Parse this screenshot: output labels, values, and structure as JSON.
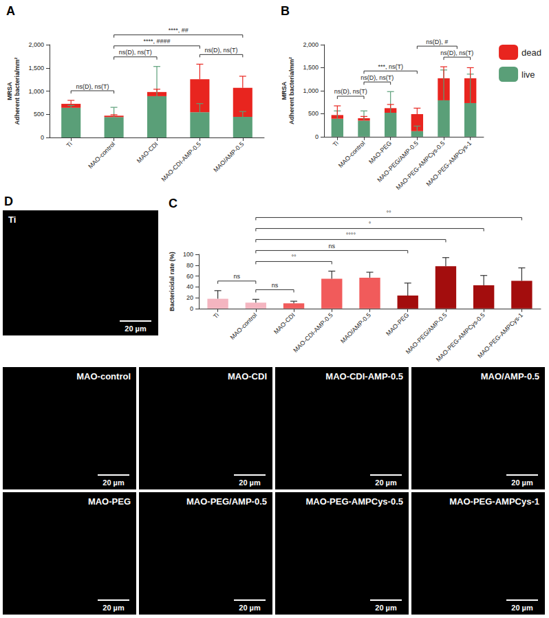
{
  "chart_data": [
    {
      "panel": "A",
      "type": "bar",
      "stacked": true,
      "grid": false,
      "ylabel": "MRSA\nAdherent bacteria/mm²",
      "categories": [
        "Ti",
        "MAO-control",
        "MAO-CDI",
        "MAO-CDI-AMP-0.5",
        "MAO/AMP-0.5"
      ],
      "series": [
        {
          "name": "live",
          "color": "#5a9f78",
          "values": [
            640,
            440,
            890,
            545,
            445
          ],
          "errors": [
            50,
            210,
            640,
            185,
            115
          ]
        },
        {
          "name": "dead",
          "color": "#e8251f",
          "values": [
            85,
            30,
            90,
            710,
            625
          ],
          "errors": [
            75,
            20,
            60,
            325,
            250
          ]
        }
      ],
      "ylim": [
        0,
        2000
      ],
      "yticks": [
        0,
        500,
        1000,
        1500,
        2000
      ],
      "annotations": [
        {
          "from": "Ti",
          "to": "MAO-control",
          "text": "ns(D), ns(T)"
        },
        {
          "from": "MAO-control",
          "to": "MAO-CDI",
          "text": "ns(D), ns(T)"
        },
        {
          "from": "MAO-control",
          "to": "MAO-CDI-AMP-0.5",
          "text": "****, ####"
        },
        {
          "from": "MAO-CDI-AMP-0.5",
          "to": "MAO/AMP-0.5",
          "text": "ns(D), ns(T)"
        },
        {
          "from": "MAO-control",
          "to": "MAO/AMP-0.5",
          "text": "****, ##"
        }
      ]
    },
    {
      "panel": "B",
      "type": "bar",
      "stacked": true,
      "grid": false,
      "legend": "right",
      "ylabel": "MRSA\nAdherent bacteria/mm²",
      "categories": [
        "Ti",
        "MAO-control",
        "MAO-PEG",
        "MAO-PEG/AMP-0.5",
        "MAO-PEG-AMPCys-0.5",
        "MAO-PEG-AMPCys-1"
      ],
      "series": [
        {
          "name": "live",
          "color": "#5a9f78",
          "values": [
            390,
            350,
            520,
            120,
            790,
            730
          ],
          "errors": [
            170,
            210,
            460,
            110,
            660,
            630
          ]
        },
        {
          "name": "dead",
          "color": "#e8251f",
          "values": [
            80,
            50,
            100,
            370,
            480,
            540
          ],
          "errors": [
            200,
            40,
            80,
            130,
            250,
            230
          ]
        }
      ],
      "ylim": [
        0,
        2000
      ],
      "yticks": [
        0,
        500,
        1000,
        1500,
        2000
      ],
      "annotations": [
        {
          "from": "Ti",
          "to": "MAO-control",
          "text": "ns(D), ns(T)"
        },
        {
          "from": "MAO-control",
          "to": "MAO-PEG",
          "text": "ns(D), ns(T)"
        },
        {
          "from": "MAO-control",
          "to": "MAO-PEG/AMP-0.5",
          "text": "***, ns(T)"
        },
        {
          "from": "MAO-PEG-AMPCys-0.5",
          "to": "MAO-PEG-AMPCys-1",
          "text": "ns(D), ns(T)"
        },
        {
          "from": "MAO-PEG/AMP-0.5",
          "to": [
            "MAO-PEG-AMPCys-0.5",
            "MAO-PEG-AMPCys-1"
          ],
          "text": "ns(D), #"
        }
      ]
    },
    {
      "panel": "C",
      "type": "bar",
      "grid": false,
      "ylabel": "Bactericidal rate (%)",
      "categories": [
        "Ti",
        "MAO-control",
        "MAO-CDI",
        "MAO-CDI-AMP-0.5",
        "MAO/AMP-0.5",
        "MAO-PEG",
        "MAO-PEG/AMP-0.5",
        "MAO-PEG-AMPCys-0.5",
        "MAO-PEG-AMPCys-1"
      ],
      "values": [
        18,
        11,
        9.5,
        55,
        57,
        24,
        78,
        43,
        51
      ],
      "errors": [
        15,
        6,
        4,
        14,
        10,
        23,
        16,
        18,
        24
      ],
      "colors": [
        "#f4b5c0",
        "#f4b5c0",
        "#f15b5b",
        "#f15b5b",
        "#f15b5b",
        "#a30d0d",
        "#a30d0d",
        "#a30d0d",
        "#a30d0d"
      ],
      "ylim": [
        0,
        100
      ],
      "yticks": [
        0,
        20,
        40,
        60,
        80,
        100
      ],
      "annotations": [
        {
          "from": "Ti",
          "to": "MAO-control",
          "text": "ns"
        },
        {
          "from": "MAO-control",
          "to": "MAO-CDI",
          "text": "ns"
        },
        {
          "from": "MAO-control",
          "to": "MAO-CDI-AMP-0.5",
          "text": "°°"
        },
        {
          "from": "MAO-control",
          "to": "MAO-PEG",
          "text": "ns"
        },
        {
          "from": "MAO-control",
          "to": "MAO-PEG/AMP-0.5",
          "text": "°°°°"
        },
        {
          "from": "MAO-control",
          "to": "MAO-PEG-AMPCys-0.5",
          "text": "°"
        },
        {
          "from": "MAO-control",
          "to": "MAO-PEG-AMPCys-1",
          "text": "°°"
        }
      ]
    }
  ],
  "image_panels": {
    "letter": "D",
    "scale_bar": "20 µm",
    "labels": [
      "Ti",
      "MAO-control",
      "MAO-CDI",
      "MAO-CDI-AMP-0.5",
      "MAO/AMP-0.5",
      "MAO-PEG",
      "MAO-PEG/AMP-0.5",
      "MAO-PEG-AMPCys-0.5",
      "MAO-PEG-AMPCys-1"
    ]
  }
}
